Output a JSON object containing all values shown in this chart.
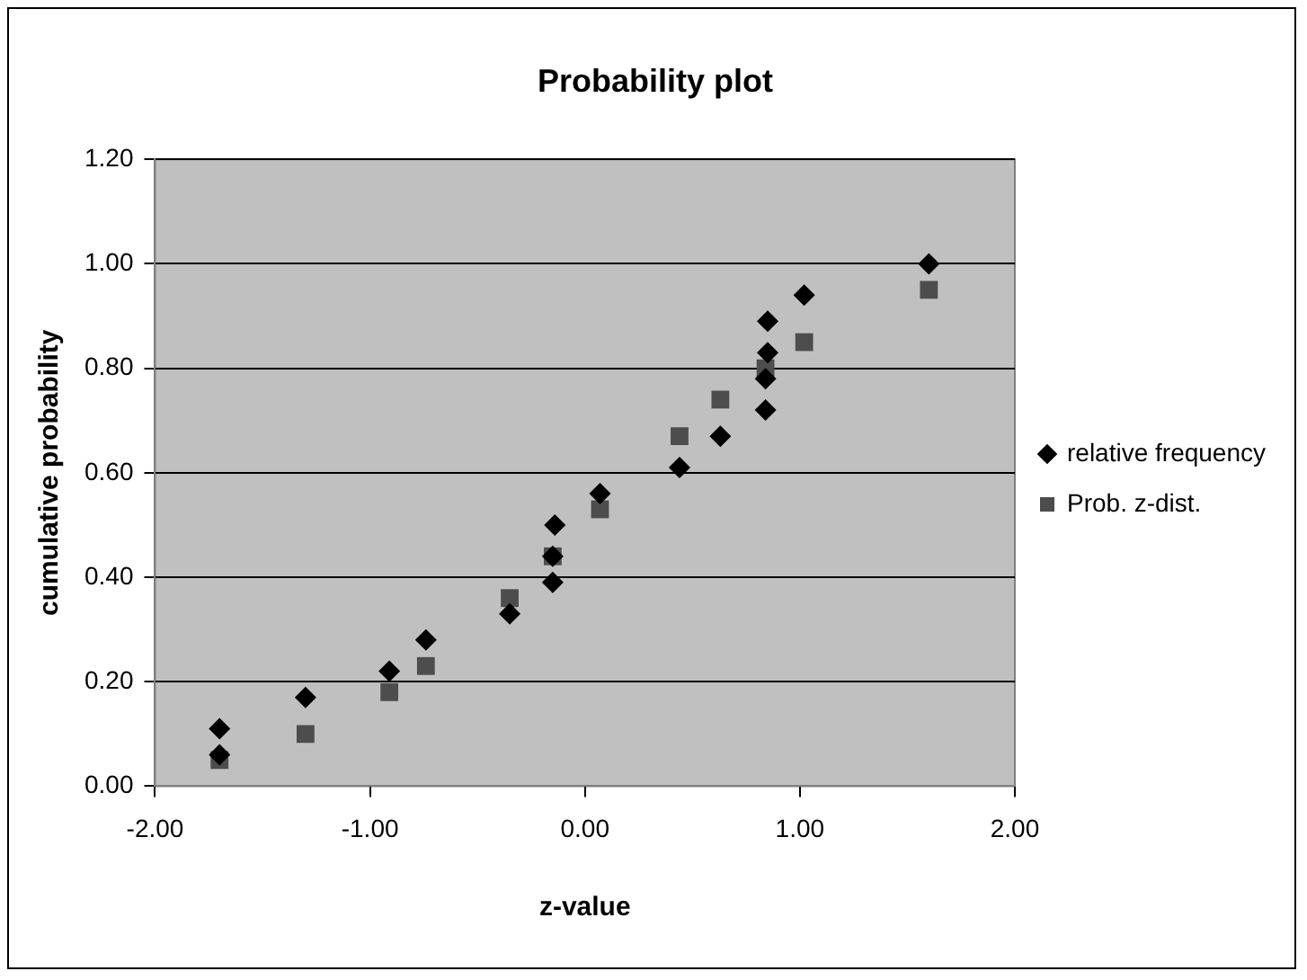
{
  "chart_data": {
    "type": "scatter",
    "title": "Probability plot",
    "xlabel": "z-value",
    "ylabel": "cumulative probability",
    "series": [
      {
        "name": "relative frequency",
        "color": "#000000",
        "marker": "diamond",
        "x": [
          -1.7,
          -1.7,
          -1.3,
          -0.91,
          -0.74,
          -0.35,
          -0.15,
          -0.15,
          -0.14,
          0.07,
          0.44,
          0.63,
          0.84,
          0.84,
          0.85,
          0.85,
          1.02,
          1.6
        ],
        "values": [
          0.06,
          0.11,
          0.17,
          0.22,
          0.28,
          0.33,
          0.39,
          0.44,
          0.5,
          0.56,
          0.61,
          0.67,
          0.72,
          0.78,
          0.83,
          0.89,
          0.94,
          1.0
        ]
      },
      {
        "name": "Prob. z-dist.",
        "color": "#4d4d4d",
        "marker": "square",
        "x": [
          -1.7,
          -1.3,
          -0.91,
          -0.74,
          -0.35,
          -0.15,
          0.07,
          0.44,
          0.63,
          0.84,
          1.02,
          1.6
        ],
        "values": [
          0.05,
          0.1,
          0.18,
          0.23,
          0.36,
          0.44,
          0.53,
          0.67,
          0.74,
          0.8,
          0.85,
          0.95
        ]
      }
    ],
    "xlim": [
      -2,
      2
    ],
    "xticks": [
      {
        "value": -2,
        "label": "-2.00"
      },
      {
        "value": -1,
        "label": "-1.00"
      },
      {
        "value": 0,
        "label": "0.00"
      },
      {
        "value": 1,
        "label": "1.00"
      },
      {
        "value": 2,
        "label": "2.00"
      }
    ],
    "ylim": [
      0,
      1.2
    ],
    "yticks": [
      {
        "value": 0,
        "label": "0.00"
      },
      {
        "value": 0.2,
        "label": "0.20"
      },
      {
        "value": 0.4,
        "label": "0.40"
      },
      {
        "value": 0.6,
        "label": "0.60"
      },
      {
        "value": 0.8,
        "label": "0.80"
      },
      {
        "value": 1,
        "label": "1.00"
      },
      {
        "value": 1.2,
        "label": "1.20"
      }
    ],
    "grid": "y",
    "legend": "right"
  }
}
